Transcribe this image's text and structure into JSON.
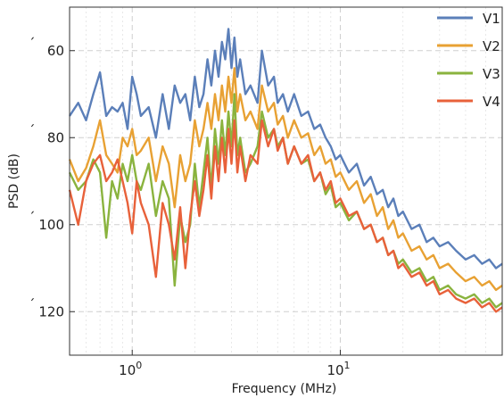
{
  "chart_data": {
    "type": "line",
    "xlabel": "Frequency (MHz)",
    "ylabel": "PSD (dB)",
    "x_scale": "log",
    "xlim": [
      0.5,
      60
    ],
    "ylim": [
      -130,
      -50
    ],
    "xticks": [
      {
        "value": 1,
        "base": "10",
        "exp": "0"
      },
      {
        "value": 10,
        "base": "10",
        "exp": "1"
      }
    ],
    "yticks": [
      {
        "value": -60,
        "label": "60",
        "prefix": "´"
      },
      {
        "value": -80,
        "label": "80",
        "prefix": "´"
      },
      {
        "value": -100,
        "label": "100",
        "prefix": "´"
      },
      {
        "value": -120,
        "label": "120",
        "prefix": "´"
      }
    ],
    "grid": true,
    "legend_position": "top-right",
    "series": [
      {
        "name": "V1",
        "color": "#5b7fb9",
        "x": [
          0.5,
          0.55,
          0.6,
          0.65,
          0.7,
          0.75,
          0.8,
          0.85,
          0.9,
          0.95,
          1.0,
          1.05,
          1.1,
          1.2,
          1.3,
          1.4,
          1.5,
          1.6,
          1.7,
          1.8,
          1.9,
          2.0,
          2.1,
          2.2,
          2.3,
          2.4,
          2.5,
          2.6,
          2.7,
          2.8,
          2.9,
          3.0,
          3.1,
          3.2,
          3.3,
          3.5,
          3.7,
          4.0,
          4.2,
          4.5,
          4.8,
          5.0,
          5.3,
          5.6,
          6.0,
          6.5,
          7.0,
          7.5,
          8.0,
          8.5,
          9.0,
          9.5,
          10,
          11,
          12,
          13,
          14,
          15,
          16,
          17,
          18,
          19,
          20,
          22,
          24,
          26,
          28,
          30,
          33,
          36,
          40,
          44,
          48,
          52,
          56,
          60
        ],
        "values": [
          -75,
          -72,
          -76,
          -70,
          -65,
          -75,
          -73,
          -74,
          -72,
          -78,
          -66,
          -70,
          -75,
          -73,
          -80,
          -70,
          -78,
          -68,
          -72,
          -70,
          -76,
          -66,
          -73,
          -70,
          -62,
          -68,
          -60,
          -66,
          -58,
          -62,
          -55,
          -64,
          -57,
          -66,
          -62,
          -70,
          -68,
          -72,
          -60,
          -68,
          -66,
          -72,
          -70,
          -74,
          -70,
          -75,
          -74,
          -78,
          -77,
          -80,
          -82,
          -85,
          -84,
          -88,
          -86,
          -91,
          -89,
          -93,
          -92,
          -96,
          -94,
          -98,
          -97,
          -101,
          -100,
          -104,
          -103,
          -105,
          -104,
          -106,
          -108,
          -107,
          -109,
          -108,
          -110,
          -109
        ]
      },
      {
        "name": "V2",
        "color": "#e8a133",
        "x": [
          0.5,
          0.55,
          0.6,
          0.65,
          0.7,
          0.75,
          0.8,
          0.85,
          0.9,
          0.95,
          1.0,
          1.05,
          1.1,
          1.2,
          1.3,
          1.4,
          1.5,
          1.6,
          1.7,
          1.8,
          1.9,
          2.0,
          2.1,
          2.2,
          2.3,
          2.4,
          2.5,
          2.6,
          2.7,
          2.8,
          2.9,
          3.0,
          3.1,
          3.2,
          3.3,
          3.5,
          3.7,
          4.0,
          4.2,
          4.5,
          4.8,
          5.0,
          5.3,
          5.6,
          6.0,
          6.5,
          7.0,
          7.5,
          8.0,
          8.5,
          9.0,
          9.5,
          10,
          11,
          12,
          13,
          14,
          15,
          16,
          17,
          18,
          19,
          20,
          22,
          24,
          26,
          28,
          30,
          33,
          36,
          40,
          44,
          48,
          52,
          56,
          60
        ],
        "values": [
          -85,
          -90,
          -87,
          -82,
          -76,
          -84,
          -86,
          -88,
          -80,
          -82,
          -78,
          -84,
          -83,
          -80,
          -90,
          -82,
          -86,
          -96,
          -84,
          -90,
          -86,
          -76,
          -82,
          -78,
          -72,
          -78,
          -70,
          -76,
          -68,
          -74,
          -66,
          -72,
          -64,
          -74,
          -70,
          -76,
          -74,
          -78,
          -68,
          -74,
          -72,
          -77,
          -75,
          -80,
          -76,
          -80,
          -79,
          -84,
          -82,
          -86,
          -85,
          -89,
          -88,
          -92,
          -90,
          -95,
          -93,
          -98,
          -96,
          -101,
          -99,
          -103,
          -102,
          -106,
          -105,
          -108,
          -107,
          -110,
          -109,
          -111,
          -113,
          -112,
          -114,
          -113,
          -115,
          -114
        ]
      },
      {
        "name": "V3",
        "color": "#8ab33e",
        "x": [
          0.5,
          0.55,
          0.6,
          0.65,
          0.7,
          0.75,
          0.8,
          0.85,
          0.9,
          0.95,
          1.0,
          1.05,
          1.1,
          1.2,
          1.3,
          1.4,
          1.5,
          1.6,
          1.7,
          1.8,
          1.9,
          2.0,
          2.1,
          2.2,
          2.3,
          2.4,
          2.5,
          2.6,
          2.7,
          2.8,
          2.9,
          3.0,
          3.1,
          3.2,
          3.3,
          3.5,
          3.7,
          4.0,
          4.2,
          4.5,
          4.8,
          5.0,
          5.3,
          5.6,
          6.0,
          6.5,
          7.0,
          7.5,
          8.0,
          8.5,
          9.0,
          9.5,
          10,
          11,
          12,
          13,
          14,
          15,
          16,
          17,
          18,
          19,
          20,
          22,
          24,
          26,
          28,
          30,
          33,
          36,
          40,
          44,
          48,
          52,
          56,
          60
        ],
        "values": [
          -88,
          -92,
          -90,
          -85,
          -88,
          -103,
          -90,
          -94,
          -86,
          -90,
          -84,
          -90,
          -92,
          -86,
          -98,
          -90,
          -94,
          -114,
          -98,
          -104,
          -100,
          -86,
          -96,
          -88,
          -80,
          -92,
          -78,
          -86,
          -76,
          -84,
          -74,
          -82,
          -70,
          -84,
          -80,
          -88,
          -86,
          -82,
          -74,
          -80,
          -78,
          -82,
          -80,
          -86,
          -82,
          -86,
          -85,
          -90,
          -88,
          -93,
          -91,
          -96,
          -95,
          -99,
          -97,
          -101,
          -100,
          -104,
          -103,
          -107,
          -106,
          -109,
          -108,
          -111,
          -110,
          -113,
          -112,
          -115,
          -114,
          -116,
          -117,
          -116,
          -118,
          -117,
          -119,
          -118
        ]
      },
      {
        "name": "V4",
        "color": "#e8613a",
        "x": [
          0.5,
          0.55,
          0.6,
          0.65,
          0.7,
          0.75,
          0.8,
          0.85,
          0.9,
          0.95,
          1.0,
          1.05,
          1.1,
          1.2,
          1.3,
          1.4,
          1.5,
          1.6,
          1.7,
          1.8,
          1.9,
          2.0,
          2.1,
          2.2,
          2.3,
          2.4,
          2.5,
          2.6,
          2.7,
          2.8,
          2.9,
          3.0,
          3.1,
          3.2,
          3.3,
          3.5,
          3.7,
          4.0,
          4.2,
          4.5,
          4.8,
          5.0,
          5.3,
          5.6,
          6.0,
          6.5,
          7.0,
          7.5,
          8.0,
          8.5,
          9.0,
          9.5,
          10,
          11,
          12,
          13,
          14,
          15,
          16,
          17,
          18,
          19,
          20,
          22,
          24,
          26,
          28,
          30,
          33,
          36,
          40,
          44,
          48,
          52,
          56,
          60
        ],
        "values": [
          -92,
          -100,
          -90,
          -86,
          -84,
          -90,
          -88,
          -85,
          -90,
          -95,
          -102,
          -90,
          -95,
          -100,
          -112,
          -95,
          -100,
          -108,
          -96,
          -110,
          -98,
          -90,
          -98,
          -92,
          -84,
          -94,
          -82,
          -90,
          -80,
          -88,
          -78,
          -86,
          -76,
          -88,
          -82,
          -90,
          -84,
          -86,
          -76,
          -82,
          -78,
          -83,
          -80,
          -86,
          -82,
          -86,
          -84,
          -90,
          -88,
          -92,
          -90,
          -95,
          -94,
          -98,
          -97,
          -101,
          -100,
          -104,
          -103,
          -107,
          -106,
          -110,
          -109,
          -112,
          -111,
          -114,
          -113,
          -116,
          -115,
          -117,
          -118,
          -117,
          -119,
          -118,
          -120,
          -119
        ]
      }
    ]
  }
}
